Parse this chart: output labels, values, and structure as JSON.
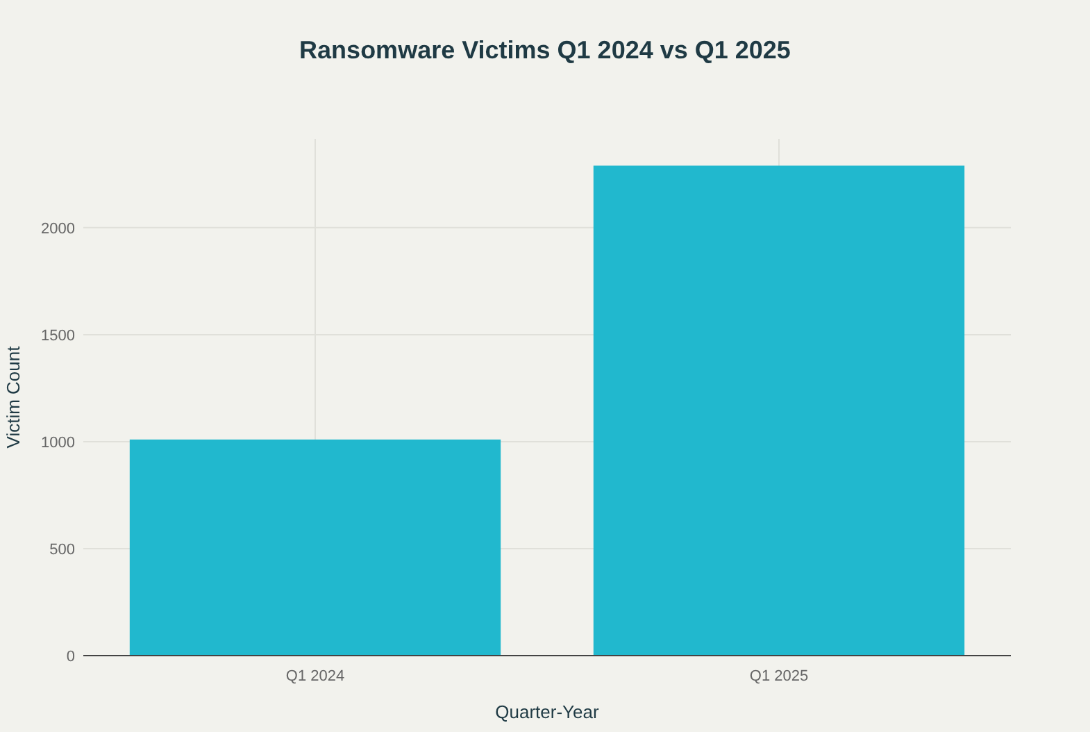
{
  "chart_data": {
    "type": "bar",
    "title": "Ransomware Victims Q1 2024 vs Q1 2025",
    "xlabel": "Quarter-Year",
    "ylabel": "Victim Count",
    "categories": [
      "Q1 2024",
      "Q1 2025"
    ],
    "values": [
      1010,
      2290
    ],
    "color": "#21b8ce",
    "ylim": [
      0,
      2415
    ],
    "yticks": [
      0,
      500,
      1000,
      1500,
      2000
    ],
    "grid": true
  }
}
